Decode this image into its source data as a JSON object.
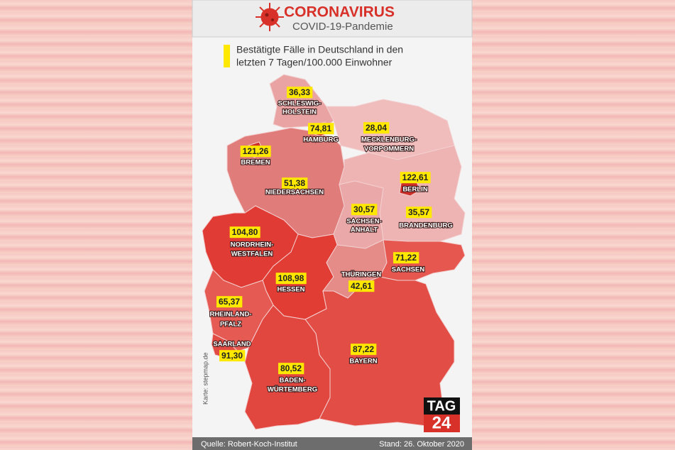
{
  "header": {
    "title": "CORONAVIRUS",
    "subtitle": "COVID-19-Pandemie"
  },
  "caption": [
    "Bestätigte Fälle in Deutschland in den",
    "letzten 7 Tagen/100.000 Einwohner"
  ],
  "states": [
    {
      "name": [
        "SCHLESWIG-",
        "HOLSTEIN"
      ],
      "value": "36,33"
    },
    {
      "name": [
        "HAMBURG"
      ],
      "value": "74,81"
    },
    {
      "name": [
        "MECKLENBURG-",
        "VORPOMMERN"
      ],
      "value": "28,04"
    },
    {
      "name": [
        "BREMEN"
      ],
      "value": "121,26"
    },
    {
      "name": [
        "NIEDERSACHSEN"
      ],
      "value": "51,38"
    },
    {
      "name": [
        "BERLIN"
      ],
      "value": "122,61"
    },
    {
      "name": [
        "SACHSEN-",
        "ANHALT"
      ],
      "value": "30,57"
    },
    {
      "name": [
        "BRANDENBURG"
      ],
      "value": "35,57"
    },
    {
      "name": [
        "NORDRHEIN-",
        "WESTFALEN"
      ],
      "value": "104,80"
    },
    {
      "name": [
        "SACHSEN"
      ],
      "value": "71,22"
    },
    {
      "name": [
        "HESSEN"
      ],
      "value": "108,98"
    },
    {
      "name": [
        "THÜRINGEN"
      ],
      "value": "42,61"
    },
    {
      "name": [
        "RHEINLAND-",
        "PFALZ"
      ],
      "value": "65,37"
    },
    {
      "name": [
        "SAARLAND"
      ],
      "value": "91,30"
    },
    {
      "name": [
        "BAYERN"
      ],
      "value": "87,22"
    },
    {
      "name": [
        "BADEN-",
        "WÜRTEMBERG"
      ],
      "value": "80,52"
    }
  ],
  "credit": "Karte: stepmap.de",
  "logo": {
    "top": "TAG",
    "bottom": "24"
  },
  "footer": {
    "source": "Quelle: Robert-Koch-Institut",
    "date": "Stand: 26. Oktober 2020"
  }
}
